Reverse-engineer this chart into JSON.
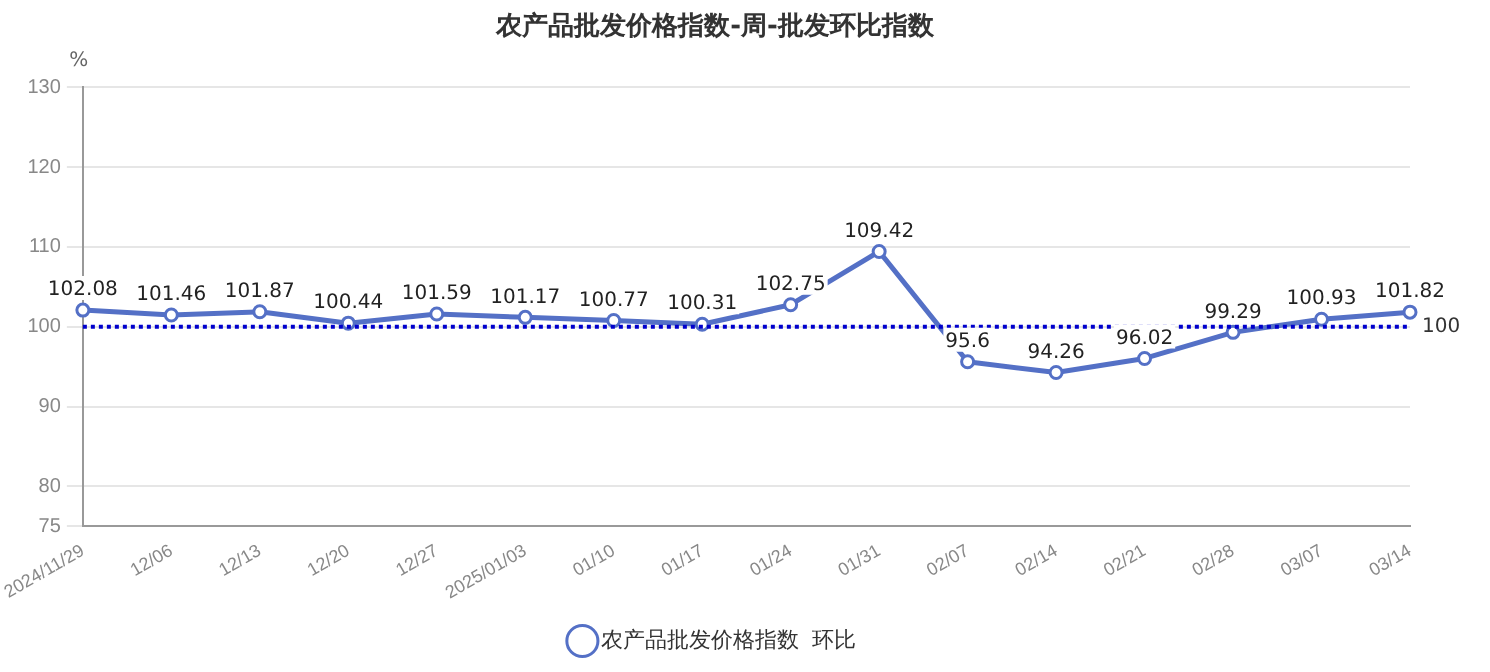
{
  "chart_data": {
    "type": "line",
    "title": "农产品批发价格指数-周-批发环比指数",
    "ylabel": "%",
    "categories": [
      "2024/11/29",
      "12/06",
      "12/13",
      "12/20",
      "12/27",
      "2025/01/03",
      "01/10",
      "01/17",
      "01/24",
      "01/31",
      "02/07",
      "02/14",
      "02/21",
      "02/28",
      "03/07",
      "03/14"
    ],
    "series": [
      {
        "name": "农产品批发价格指数  环比",
        "color": "#5470c6",
        "values": [
          102.08,
          101.46,
          101.87,
          100.44,
          101.59,
          101.17,
          100.77,
          100.31,
          102.75,
          109.42,
          95.6,
          94.26,
          96.02,
          99.29,
          100.93,
          101.82
        ]
      }
    ],
    "ylim": [
      75,
      130
    ],
    "yticks": [
      75,
      80,
      90,
      100,
      110,
      120,
      130
    ],
    "ref_lines": [
      {
        "axis": "y",
        "value": 100,
        "label": "100",
        "color": "#0000cc",
        "line_style": "dotted"
      }
    ],
    "data_labels": true,
    "grid": "y",
    "legend": "bottom",
    "marker": "circle",
    "line_style": "solid"
  }
}
